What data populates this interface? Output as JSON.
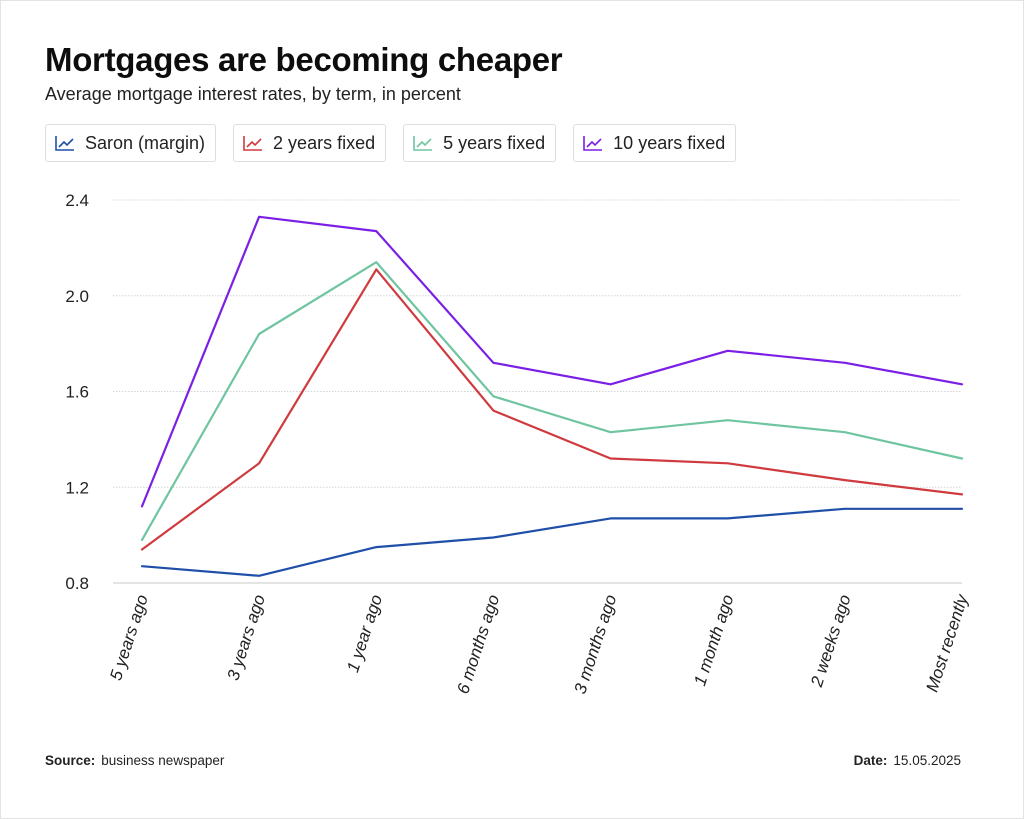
{
  "title": "Mortgages are becoming cheaper",
  "subtitle": "Average mortgage interest rates, by term, in percent",
  "legend": {
    "items": [
      {
        "label": "Saron (margin)",
        "color": "#1f4fa8"
      },
      {
        "label": "2 years fixed",
        "color": "#cf3a3e"
      },
      {
        "label": "5 years fixed",
        "color": "#6fc5a0"
      },
      {
        "label": "10 years fixed",
        "color": "#7b1fe6"
      }
    ]
  },
  "footer": {
    "source_label": "Source:",
    "source_value": "business newspaper",
    "date_label": "Date:",
    "date_value": "15.05.2025"
  },
  "chart_data": {
    "type": "line",
    "categories": [
      "5 years ago",
      "3 years ago",
      "1 year ago",
      "6 months ago",
      "3 months ago",
      "1 month ago",
      "2 weeks ago",
      "Most recently"
    ],
    "series": [
      {
        "name": "Saron (margin)",
        "color": "#1f4fa8",
        "values": [
          0.87,
          0.83,
          0.95,
          0.99,
          1.07,
          1.07,
          1.11,
          1.11
        ]
      },
      {
        "name": "2 years fixed",
        "color": "#cf3a3e",
        "values": [
          0.94,
          1.3,
          2.11,
          1.52,
          1.32,
          1.3,
          1.23,
          1.17
        ]
      },
      {
        "name": "5 years fixed",
        "color": "#6fc5a0",
        "values": [
          0.98,
          1.84,
          2.14,
          1.58,
          1.43,
          1.48,
          1.43,
          1.32
        ]
      },
      {
        "name": "10 years fixed",
        "color": "#7b1fe6",
        "values": [
          1.12,
          2.33,
          2.27,
          1.72,
          1.63,
          1.77,
          1.72,
          1.63
        ]
      }
    ],
    "yticks": [
      "2.4",
      "2.0",
      "1.6",
      "1.2",
      "0.8"
    ],
    "ylim": [
      0.8,
      2.4
    ],
    "grid": true,
    "legend_position": "top-left"
  }
}
